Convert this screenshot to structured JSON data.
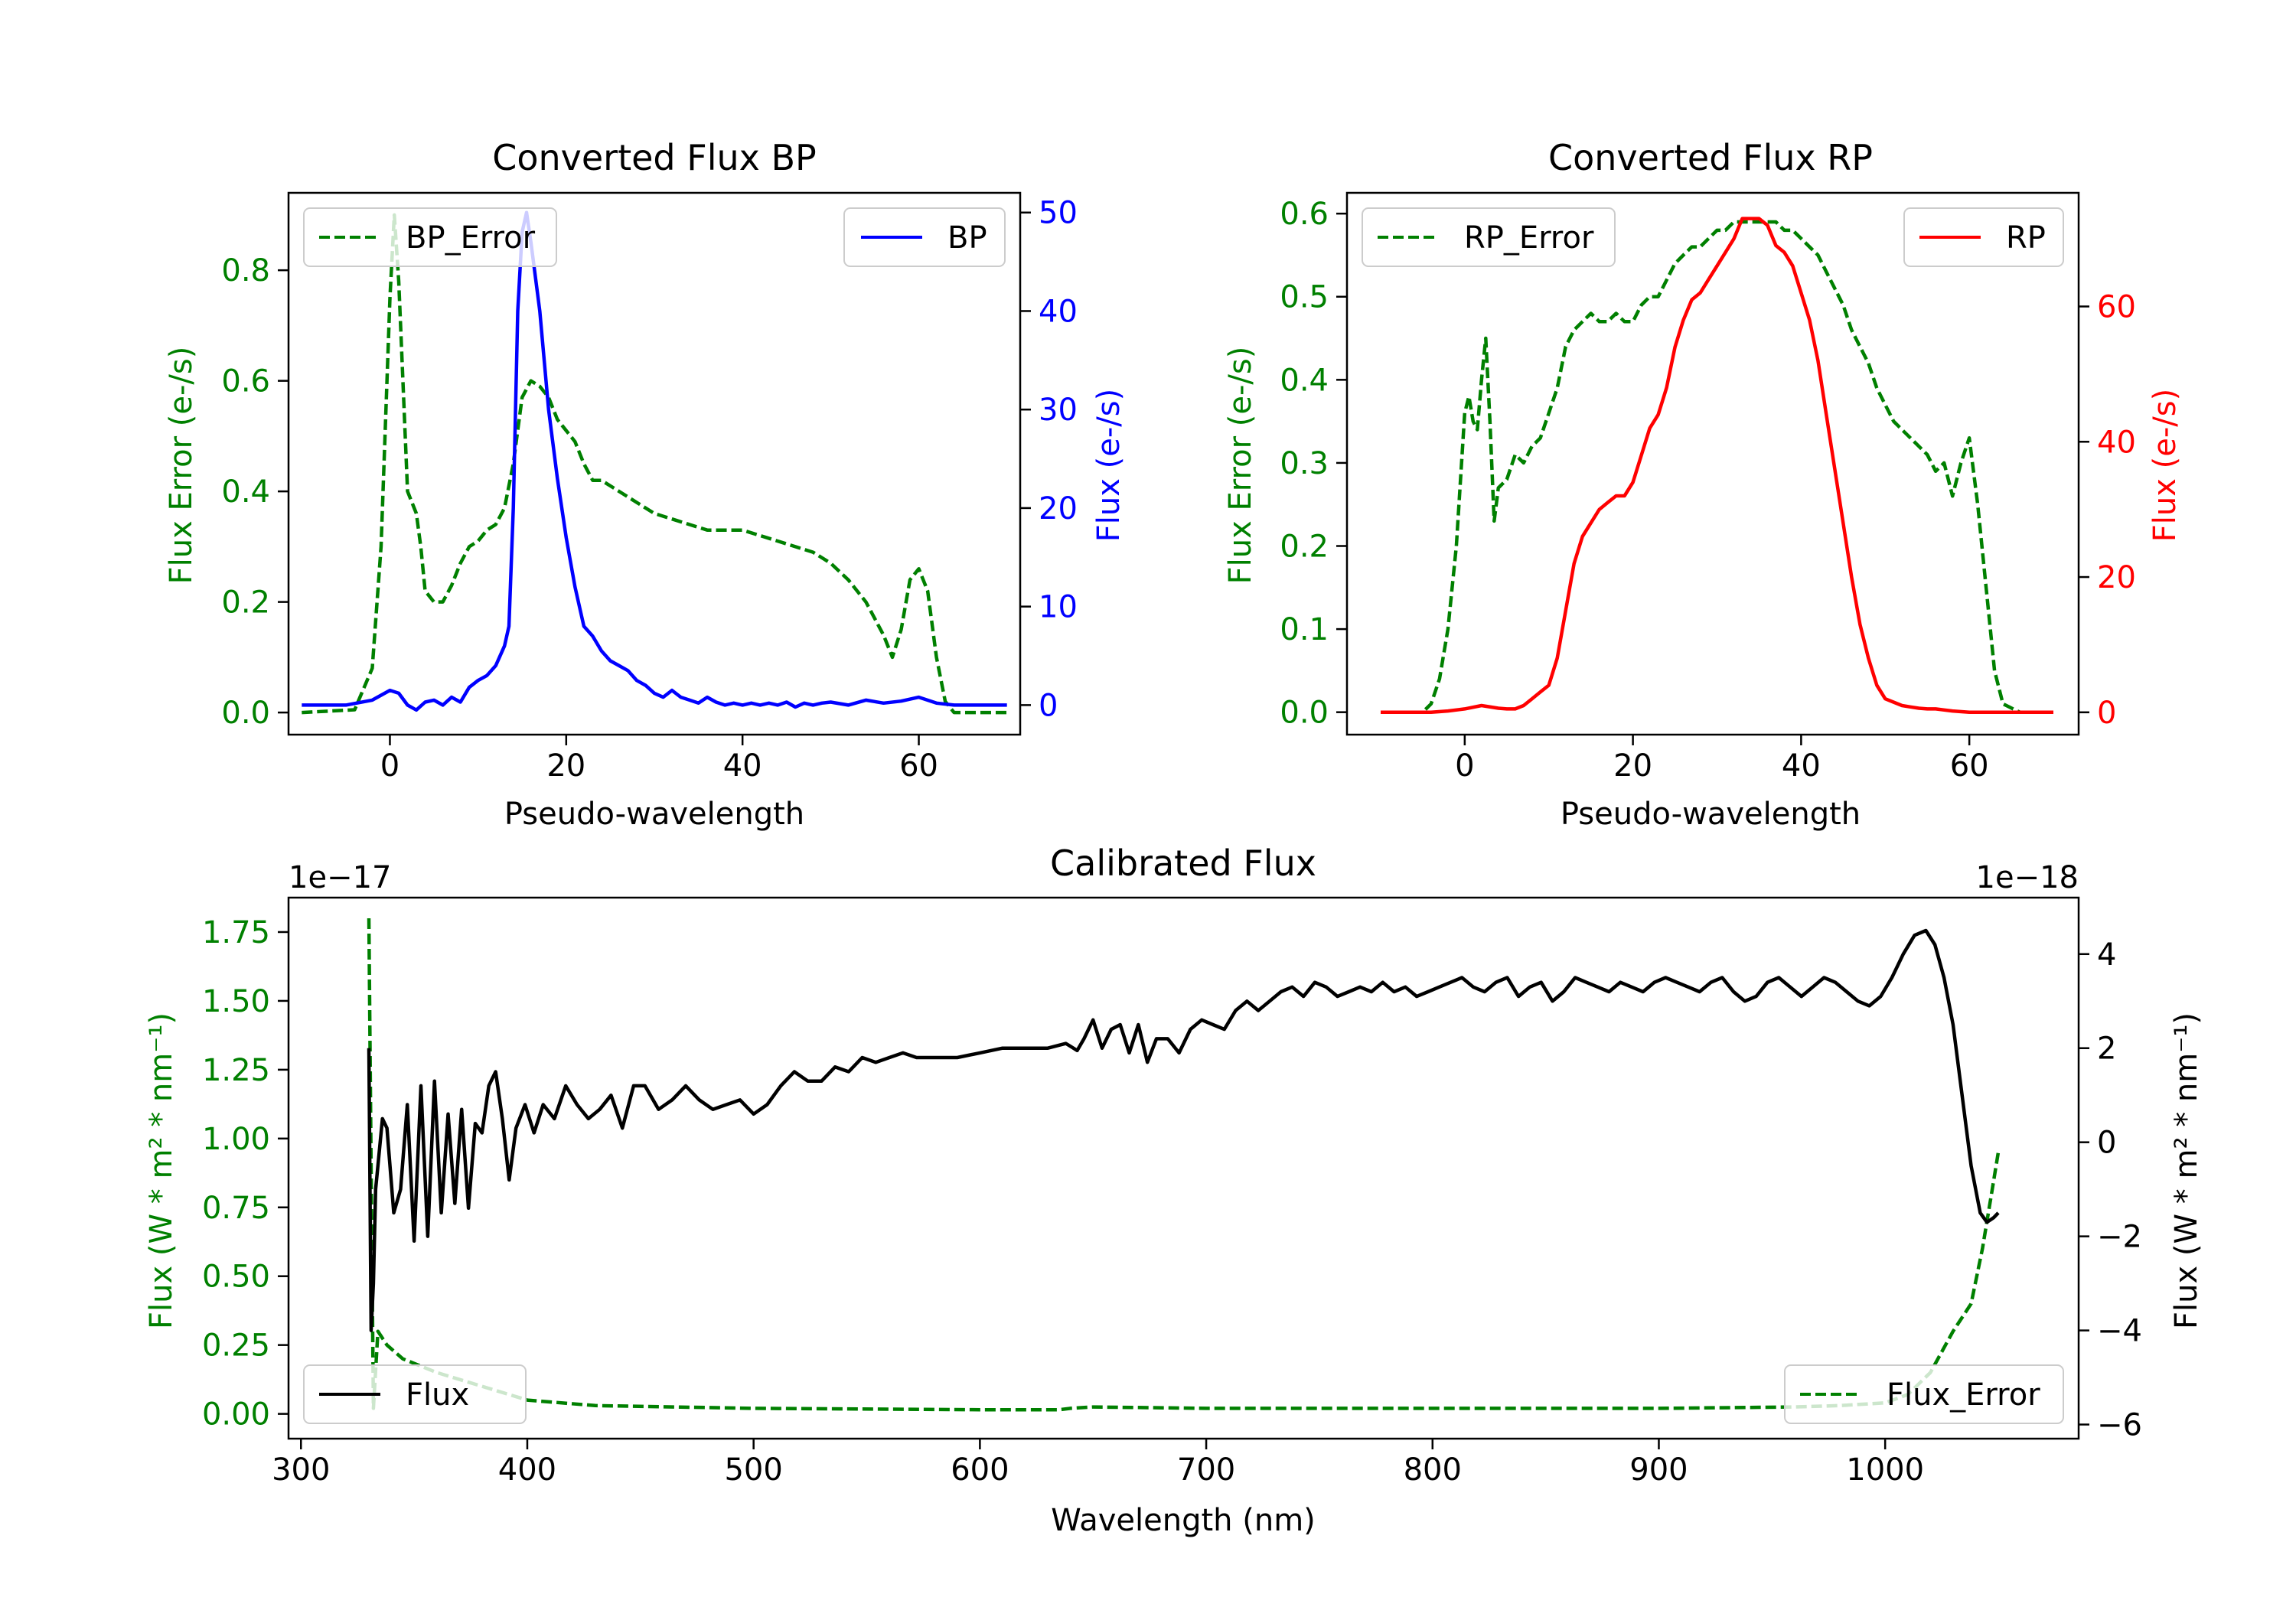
{
  "colors": {
    "green": "#008000",
    "blue": "#0000ff",
    "red": "#ff0000",
    "black": "#000000"
  },
  "chart_data": [
    {
      "id": "bp",
      "type": "line",
      "title": "Converted Flux BP",
      "xlabel": "Pseudo-wavelength",
      "ylabel_left": "Flux Error (e-/s)",
      "ylabel_right": "Flux (e-/s)",
      "xlim": [
        -11.5,
        71.5
      ],
      "ylim_left": [
        -0.04,
        0.94
      ],
      "ylim_right": [
        -3,
        52
      ],
      "x_ticks": [
        0,
        20,
        40,
        60
      ],
      "y_ticks_left": [
        "0.0",
        "0.2",
        "0.4",
        "0.6",
        "0.8"
      ],
      "y_ticks_right": [
        "0",
        "10",
        "20",
        "30",
        "40",
        "50"
      ],
      "series": [
        {
          "name": "BP_Error",
          "axis": "left",
          "style": "dashed",
          "color": "#008000",
          "x": [
            -10,
            -4,
            -2,
            -1,
            0,
            0.5,
            1,
            2,
            3,
            3.5,
            4,
            5,
            6,
            7,
            8,
            9,
            10,
            11,
            12,
            13,
            14,
            15,
            16,
            17,
            18,
            19,
            20,
            21,
            22,
            23,
            24,
            25,
            26,
            28,
            30,
            32,
            34,
            36,
            38,
            40,
            42,
            44,
            46,
            48,
            50,
            52,
            54,
            56,
            57,
            58,
            59,
            60,
            61,
            62,
            63,
            64,
            66,
            70
          ],
          "y": [
            0.0,
            0.005,
            0.08,
            0.3,
            0.75,
            0.9,
            0.78,
            0.4,
            0.36,
            0.3,
            0.22,
            0.2,
            0.2,
            0.23,
            0.27,
            0.3,
            0.31,
            0.33,
            0.34,
            0.37,
            0.45,
            0.57,
            0.6,
            0.59,
            0.57,
            0.53,
            0.51,
            0.49,
            0.45,
            0.42,
            0.42,
            0.41,
            0.4,
            0.38,
            0.36,
            0.35,
            0.34,
            0.33,
            0.33,
            0.33,
            0.32,
            0.31,
            0.3,
            0.29,
            0.27,
            0.24,
            0.2,
            0.14,
            0.1,
            0.15,
            0.24,
            0.26,
            0.22,
            0.1,
            0.02,
            0.0,
            0.0,
            0.0
          ]
        },
        {
          "name": "BP",
          "axis": "right",
          "style": "solid",
          "color": "#0000ff",
          "x": [
            -10,
            -5,
            -2,
            0,
            1,
            2,
            3,
            4,
            5,
            6,
            7,
            8,
            9,
            10,
            11,
            12,
            13,
            13.5,
            14,
            14.5,
            15,
            15.5,
            16,
            17,
            18,
            19,
            20,
            21,
            22,
            23,
            24,
            25,
            26,
            27,
            28,
            29,
            30,
            31,
            32,
            33,
            34,
            35,
            36,
            37,
            38,
            39,
            40,
            41,
            42,
            43,
            44,
            45,
            46,
            47,
            48,
            49,
            50,
            52,
            54,
            56,
            58,
            60,
            62,
            64,
            66,
            70
          ],
          "y": [
            0,
            0,
            0.5,
            1.5,
            1.2,
            0,
            -0.5,
            0.3,
            0.5,
            0,
            0.8,
            0.3,
            1.8,
            2.5,
            3,
            4,
            6,
            8,
            20,
            40,
            48,
            50,
            47,
            40,
            30,
            23,
            17,
            12,
            8,
            7,
            5.5,
            4.5,
            4,
            3.5,
            2.5,
            2,
            1.2,
            0.8,
            1.5,
            0.8,
            0.5,
            0.2,
            0.8,
            0.3,
            0,
            0.2,
            0,
            0.2,
            0,
            0.2,
            0,
            0.3,
            -0.2,
            0.2,
            0,
            0.2,
            0.3,
            0,
            0.5,
            0.2,
            0.4,
            0.8,
            0.2,
            0,
            0,
            0
          ]
        }
      ],
      "legends": [
        {
          "label": "BP_Error",
          "position": "upper left"
        },
        {
          "label": "BP",
          "position": "upper right"
        }
      ]
    },
    {
      "id": "rp",
      "type": "line",
      "title": "Converted Flux RP",
      "xlabel": "Pseudo-wavelength",
      "ylabel_left": "Flux Error (e-/s)",
      "ylabel_right": "Flux (e-/s)",
      "xlim": [
        -14,
        73
      ],
      "ylim_left": [
        -0.027,
        0.625
      ],
      "ylim_right": [
        -3.3,
        76.8
      ],
      "x_ticks": [
        0,
        20,
        40,
        60
      ],
      "y_ticks_left": [
        "0.0",
        "0.1",
        "0.2",
        "0.3",
        "0.4",
        "0.5",
        "0.6"
      ],
      "y_ticks_right": [
        "0",
        "20",
        "40",
        "60"
      ],
      "series": [
        {
          "name": "RP_Error",
          "axis": "left",
          "style": "dashed",
          "color": "#008000",
          "x": [
            -10,
            -5,
            -4,
            -3,
            -2,
            -1,
            0,
            0.5,
            1,
            1.5,
            2,
            2.5,
            3,
            3.5,
            4,
            5,
            6,
            7,
            8,
            9,
            10,
            11,
            12,
            13,
            14,
            15,
            16,
            17,
            18,
            19,
            20,
            21,
            22,
            23,
            24,
            25,
            26,
            27,
            28,
            29,
            30,
            31,
            32,
            33,
            34,
            35,
            36,
            37,
            38,
            39,
            40,
            41,
            42,
            43,
            44,
            45,
            46,
            47,
            48,
            49,
            50,
            51,
            52,
            53,
            54,
            55,
            56,
            57,
            58,
            59,
            60,
            61,
            62,
            63,
            64,
            66,
            70
          ],
          "y": [
            0.0,
            0.0,
            0.01,
            0.04,
            0.1,
            0.2,
            0.36,
            0.38,
            0.35,
            0.34,
            0.4,
            0.45,
            0.35,
            0.23,
            0.27,
            0.28,
            0.31,
            0.3,
            0.32,
            0.33,
            0.36,
            0.39,
            0.44,
            0.46,
            0.47,
            0.48,
            0.47,
            0.47,
            0.48,
            0.47,
            0.47,
            0.49,
            0.5,
            0.5,
            0.52,
            0.54,
            0.55,
            0.56,
            0.56,
            0.57,
            0.58,
            0.58,
            0.59,
            0.59,
            0.59,
            0.59,
            0.59,
            0.59,
            0.58,
            0.58,
            0.57,
            0.56,
            0.55,
            0.53,
            0.51,
            0.49,
            0.46,
            0.44,
            0.42,
            0.39,
            0.37,
            0.35,
            0.34,
            0.33,
            0.32,
            0.31,
            0.29,
            0.3,
            0.26,
            0.3,
            0.33,
            0.25,
            0.15,
            0.05,
            0.01,
            0.0,
            0.0
          ]
        },
        {
          "name": "RP",
          "axis": "right",
          "style": "solid",
          "color": "#ff0000",
          "x": [
            -10,
            -4,
            -2,
            0,
            2,
            4,
            5,
            6,
            7,
            8,
            9,
            10,
            11,
            12,
            13,
            14,
            15,
            16,
            17,
            18,
            19,
            20,
            21,
            22,
            23,
            24,
            25,
            26,
            27,
            28,
            29,
            30,
            31,
            32,
            33,
            34,
            35,
            36,
            37,
            38,
            39,
            40,
            41,
            42,
            43,
            44,
            45,
            46,
            47,
            48,
            49,
            50,
            51,
            52,
            53,
            54,
            55,
            56,
            58,
            60,
            62,
            64,
            66,
            70
          ],
          "y": [
            0,
            0,
            0.2,
            0.5,
            1,
            0.6,
            0.5,
            0.5,
            1,
            2,
            3,
            4,
            8,
            15,
            22,
            26,
            28,
            30,
            31,
            32,
            32,
            34,
            38,
            42,
            44,
            48,
            54,
            58,
            61,
            62,
            64,
            66,
            68,
            70,
            73,
            73,
            73,
            72,
            69,
            68,
            66,
            62,
            58,
            52,
            44,
            36,
            28,
            20,
            13,
            8,
            4,
            2,
            1.5,
            1,
            0.8,
            0.6,
            0.5,
            0.5,
            0.2,
            0,
            0,
            0,
            0,
            0
          ]
        }
      ],
      "legends": [
        {
          "label": "RP_Error",
          "position": "upper left"
        },
        {
          "label": "RP",
          "position": "upper right"
        }
      ]
    },
    {
      "id": "cal",
      "type": "line",
      "title": "Calibrated Flux",
      "xlabel": "Wavelength (nm)",
      "ylabel_left": "Flux (W * m² * nm⁻¹)",
      "ylabel_right": "Flux (W * m² * nm⁻¹)",
      "offset_left": "1e−17",
      "offset_right": "1e−18",
      "xlim": [
        294.5,
        1085.5
      ],
      "ylim_left": [
        -0.09,
        1.875
      ],
      "ylim_right": [
        -6.3,
        5.2
      ],
      "x_ticks": [
        "300",
        "400",
        "500",
        "600",
        "700",
        "800",
        "900",
        "1000"
      ],
      "y_ticks_left": [
        "0.00",
        "0.25",
        "0.50",
        "0.75",
        "1.00",
        "1.25",
        "1.50",
        "1.75"
      ],
      "y_ticks_right": [
        "−6",
        "−4",
        "−2",
        "0",
        "2",
        "4"
      ],
      "series": [
        {
          "name": "Flux_Error",
          "axis": "left",
          "style": "dashed",
          "color": "#008000",
          "x": [
            330,
            331,
            332,
            334,
            338,
            345,
            360,
            380,
            400,
            430,
            500,
            600,
            635,
            640,
            650,
            700,
            800,
            900,
            960,
            980,
            1000,
            1010,
            1020,
            1030,
            1038,
            1043,
            1047,
            1050
          ],
          "y": [
            1.8,
            0.9,
            0.02,
            0.3,
            0.25,
            0.2,
            0.15,
            0.1,
            0.05,
            0.03,
            0.02,
            0.015,
            0.015,
            0.02,
            0.025,
            0.02,
            0.02,
            0.02,
            0.025,
            0.03,
            0.04,
            0.07,
            0.15,
            0.3,
            0.4,
            0.6,
            0.8,
            0.95
          ]
        },
        {
          "name": "Flux",
          "axis": "right",
          "style": "solid",
          "color": "#000000",
          "x": [
            330,
            331,
            332,
            333,
            334,
            336,
            338,
            341,
            344,
            347,
            350,
            353,
            356,
            359,
            362,
            365,
            368,
            371,
            374,
            377,
            380,
            383,
            386,
            389,
            392,
            395,
            399,
            403,
            407,
            412,
            417,
            422,
            427,
            432,
            437,
            442,
            447,
            452,
            458,
            464,
            470,
            476,
            482,
            488,
            494,
            500,
            506,
            512,
            518,
            524,
            530,
            536,
            542,
            548,
            554,
            560,
            566,
            572,
            578,
            590,
            600,
            610,
            620,
            630,
            638,
            643,
            646,
            650,
            654,
            658,
            662,
            666,
            670,
            674,
            678,
            683,
            688,
            693,
            698,
            703,
            708,
            713,
            718,
            723,
            728,
            733,
            738,
            743,
            748,
            753,
            758,
            763,
            768,
            773,
            778,
            783,
            788,
            793,
            798,
            803,
            808,
            813,
            818,
            823,
            828,
            833,
            838,
            843,
            848,
            853,
            858,
            863,
            868,
            873,
            878,
            883,
            888,
            893,
            898,
            903,
            908,
            913,
            918,
            923,
            928,
            933,
            938,
            943,
            948,
            953,
            958,
            963,
            968,
            973,
            978,
            983,
            988,
            993,
            998,
            1003,
            1008,
            1013,
            1018,
            1022,
            1026,
            1030,
            1034,
            1038,
            1042,
            1045,
            1048,
            1050
          ],
          "y": [
            2,
            -4,
            -3,
            -1,
            -0.5,
            0.5,
            0.3,
            -1.5,
            -1.0,
            0.8,
            -2.1,
            1.2,
            -2.0,
            1.3,
            -1.5,
            0.6,
            -1.3,
            0.7,
            -1.4,
            0.4,
            0.2,
            1.2,
            1.5,
            0.5,
            -0.8,
            0.3,
            0.8,
            0.2,
            0.8,
            0.5,
            1.2,
            0.8,
            0.5,
            0.7,
            1.0,
            0.3,
            1.2,
            1.2,
            0.7,
            0.9,
            1.2,
            0.9,
            0.7,
            0.8,
            0.9,
            0.6,
            0.8,
            1.2,
            1.5,
            1.3,
            1.3,
            1.6,
            1.5,
            1.8,
            1.7,
            1.8,
            1.9,
            1.8,
            1.8,
            1.8,
            1.9,
            2.0,
            2.0,
            2.0,
            2.1,
            1.95,
            2.2,
            2.6,
            2.0,
            2.4,
            2.5,
            1.9,
            2.5,
            1.7,
            2.2,
            2.2,
            1.9,
            2.4,
            2.6,
            2.5,
            2.4,
            2.8,
            3.0,
            2.8,
            3.0,
            3.2,
            3.3,
            3.1,
            3.4,
            3.3,
            3.1,
            3.2,
            3.3,
            3.2,
            3.4,
            3.2,
            3.3,
            3.1,
            3.2,
            3.3,
            3.4,
            3.5,
            3.3,
            3.2,
            3.4,
            3.5,
            3.1,
            3.3,
            3.4,
            3.0,
            3.2,
            3.5,
            3.4,
            3.3,
            3.2,
            3.4,
            3.3,
            3.2,
            3.4,
            3.5,
            3.4,
            3.3,
            3.2,
            3.4,
            3.5,
            3.2,
            3.0,
            3.1,
            3.4,
            3.5,
            3.3,
            3.1,
            3.3,
            3.5,
            3.4,
            3.2,
            3.0,
            2.9,
            3.1,
            3.5,
            4.0,
            4.4,
            4.5,
            4.2,
            3.5,
            2.5,
            1.0,
            -0.5,
            -1.5,
            -1.7,
            -1.6,
            -1.5
          ]
        }
      ],
      "legends": [
        {
          "label": "Flux",
          "position": "lower left"
        },
        {
          "label": "Flux_Error",
          "position": "lower right"
        }
      ]
    }
  ]
}
